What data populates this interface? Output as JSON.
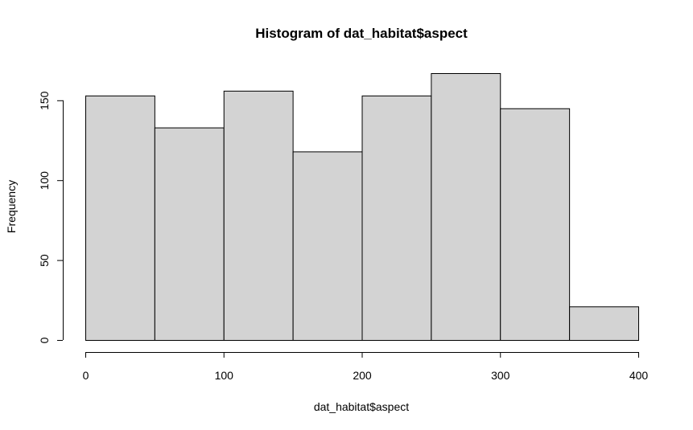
{
  "chart_data": {
    "type": "bar",
    "title": "Histogram of dat_habitat$aspect",
    "xlabel": "dat_habitat$aspect",
    "ylabel": "Frequency",
    "bins": [
      {
        "start": 0,
        "end": 50,
        "count": 153
      },
      {
        "start": 50,
        "end": 100,
        "count": 133
      },
      {
        "start": 100,
        "end": 150,
        "count": 156
      },
      {
        "start": 150,
        "end": 200,
        "count": 118
      },
      {
        "start": 200,
        "end": 250,
        "count": 153
      },
      {
        "start": 250,
        "end": 300,
        "count": 167
      },
      {
        "start": 300,
        "end": 350,
        "count": 145
      },
      {
        "start": 350,
        "end": 400,
        "count": 21
      }
    ],
    "xlim": [
      0,
      400
    ],
    "ylim": [
      0,
      167
    ],
    "x_ticks": [
      0,
      100,
      200,
      300,
      400
    ],
    "y_ticks": [
      0,
      50,
      100,
      150
    ],
    "bar_fill": "#d3d3d3",
    "bar_stroke": "#000000",
    "grid": false
  }
}
